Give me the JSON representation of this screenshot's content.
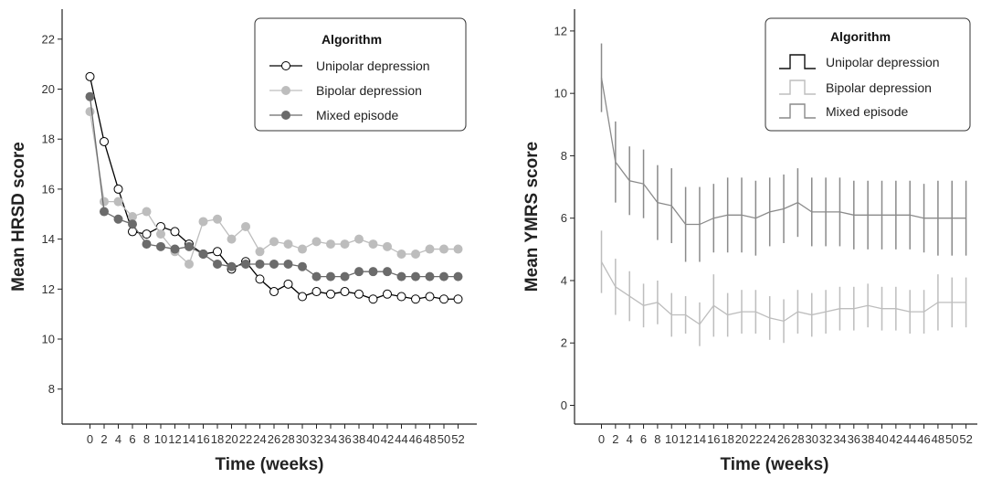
{
  "chart_data": [
    {
      "type": "line",
      "xlabel": "Time (weeks)",
      "ylabel": "Mean HRSD score",
      "ylim": [
        6.6,
        23.2
      ],
      "yticks": [
        8,
        10,
        12,
        14,
        16,
        18,
        20,
        22
      ],
      "x": [
        0,
        2,
        4,
        6,
        8,
        10,
        12,
        14,
        16,
        18,
        20,
        22,
        24,
        26,
        28,
        30,
        32,
        34,
        36,
        38,
        40,
        42,
        44,
        46,
        48,
        50,
        52
      ],
      "legend": {
        "title": "Algorithm",
        "position": "top-right"
      },
      "series": [
        {
          "name": "Unipolar depression",
          "color": "#000000",
          "fill": "#ffffff",
          "marker": "circle",
          "values": [
            20.5,
            17.9,
            16.0,
            14.3,
            14.2,
            14.5,
            14.3,
            13.8,
            13.4,
            13.5,
            12.8,
            13.1,
            12.4,
            11.9,
            12.2,
            11.7,
            11.9,
            11.8,
            11.9,
            11.8,
            11.6,
            11.8,
            11.7,
            11.6,
            11.7,
            11.6,
            11.6
          ]
        },
        {
          "name": "Bipolar depression",
          "color": "#bdbdbd",
          "fill": "#bdbdbd",
          "marker": "circle",
          "values": [
            19.1,
            15.5,
            15.5,
            14.9,
            15.1,
            14.2,
            13.5,
            13.0,
            14.7,
            14.8,
            14.0,
            14.5,
            13.5,
            13.9,
            13.8,
            13.6,
            13.9,
            13.8,
            13.8,
            14.0,
            13.8,
            13.7,
            13.4,
            13.4,
            13.6,
            13.6,
            13.6
          ]
        },
        {
          "name": "Mixed episode",
          "color": "#6b6b6b",
          "fill": "#6b6b6b",
          "marker": "circle",
          "values": [
            19.7,
            15.1,
            14.8,
            14.6,
            13.8,
            13.7,
            13.6,
            13.7,
            13.4,
            13.0,
            12.9,
            13.0,
            13.0,
            13.0,
            13.0,
            12.9,
            12.5,
            12.5,
            12.5,
            12.7,
            12.7,
            12.7,
            12.5,
            12.5,
            12.5,
            12.5,
            12.5
          ]
        }
      ]
    },
    {
      "type": "line",
      "xlabel": "Time (weeks)",
      "ylabel": "Mean YMRS score",
      "ylim": [
        -0.6,
        12.7
      ],
      "yticks": [
        0,
        2,
        4,
        6,
        8,
        10,
        12
      ],
      "x": [
        0,
        2,
        4,
        6,
        8,
        10,
        12,
        14,
        16,
        18,
        20,
        22,
        24,
        26,
        28,
        30,
        32,
        34,
        36,
        38,
        40,
        42,
        44,
        46,
        48,
        50,
        52
      ],
      "legend": {
        "title": "Algorithm",
        "position": "top-right"
      },
      "series": [
        {
          "name": "Unipolar depression",
          "color": "#111111",
          "values": null,
          "errors": null
        },
        {
          "name": "Bipolar depression",
          "color": "#bdbdbd",
          "values": [
            4.6,
            3.8,
            3.5,
            3.2,
            3.3,
            2.9,
            2.9,
            2.6,
            3.2,
            2.9,
            3.0,
            3.0,
            2.8,
            2.7,
            3.0,
            2.9,
            3.0,
            3.1,
            3.1,
            3.2,
            3.1,
            3.1,
            3.0,
            3.0,
            3.3,
            3.3,
            3.3
          ],
          "errors": [
            1.0,
            0.9,
            0.8,
            0.7,
            0.7,
            0.7,
            0.6,
            0.7,
            1.0,
            0.7,
            0.7,
            0.7,
            0.7,
            0.7,
            0.7,
            0.7,
            0.7,
            0.7,
            0.7,
            0.7,
            0.7,
            0.7,
            0.7,
            0.7,
            0.9,
            0.8,
            0.8
          ]
        },
        {
          "name": "Mixed episode",
          "color": "#8a8a8a",
          "values": [
            10.5,
            7.8,
            7.2,
            7.1,
            6.5,
            6.4,
            5.8,
            5.8,
            6.0,
            6.1,
            6.1,
            6.0,
            6.2,
            6.3,
            6.5,
            6.2,
            6.2,
            6.2,
            6.1,
            6.1,
            6.1,
            6.1,
            6.1,
            6.0,
            6.0,
            6.0,
            6.0
          ],
          "errors": [
            1.1,
            1.3,
            1.1,
            1.1,
            1.2,
            1.2,
            1.2,
            1.2,
            1.1,
            1.2,
            1.2,
            1.2,
            1.1,
            1.1,
            1.1,
            1.1,
            1.1,
            1.1,
            1.1,
            1.1,
            1.1,
            1.1,
            1.1,
            1.1,
            1.2,
            1.2,
            1.2
          ]
        }
      ]
    }
  ]
}
